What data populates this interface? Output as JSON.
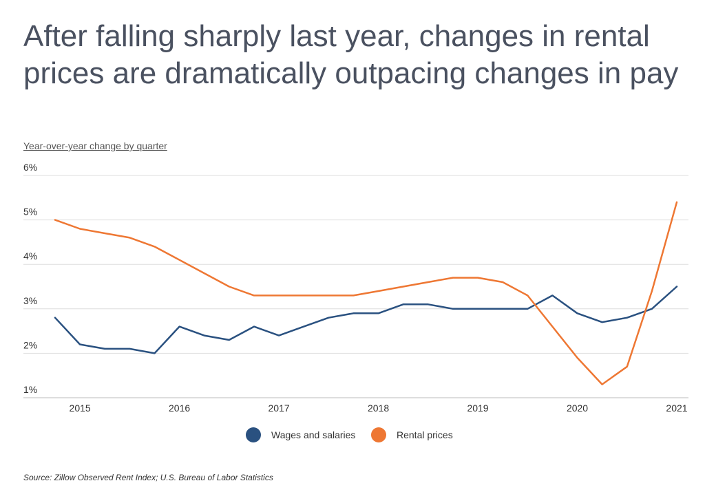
{
  "title": "After falling sharply last year, changes in rental prices are dramatically outpacing changes in pay",
  "subtitle": "Year-over-year change by quarter",
  "source": "Source:  Zillow Observed Rent Index; U.S. Bureau of Labor Statistics",
  "colors": {
    "wages": "#2a5180",
    "rent": "#ee7733",
    "grid": "#dddddd",
    "axis": "#bbbbbb"
  },
  "chart_data": {
    "type": "line",
    "title": "After falling sharply last year, changes in rental prices are dramatically outpacing changes in pay",
    "ylabel": "Year-over-year change by quarter",
    "xlabel": "",
    "ylim": [
      1,
      6
    ],
    "xlim": [
      2014.75,
      2021
    ],
    "yticks": [
      1,
      2,
      3,
      4,
      5,
      6
    ],
    "ytick_labels": [
      "1%",
      "2%",
      "3%",
      "4%",
      "5%",
      "6%"
    ],
    "xticks": [
      2015,
      2016,
      2017,
      2018,
      2019,
      2020,
      2021
    ],
    "xtick_labels": [
      "2015",
      "2016",
      "2017",
      "2018",
      "2019",
      "2020",
      "2021"
    ],
    "grid": true,
    "legend": "bottom-center",
    "x": [
      2014.75,
      2015.0,
      2015.25,
      2015.5,
      2015.75,
      2016.0,
      2016.25,
      2016.5,
      2016.75,
      2017.0,
      2017.25,
      2017.5,
      2017.75,
      2018.0,
      2018.25,
      2018.5,
      2018.75,
      2019.0,
      2019.25,
      2019.5,
      2019.75,
      2020.0,
      2020.25,
      2020.5,
      2020.75,
      2021.0
    ],
    "series": [
      {
        "name": "Wages and salaries",
        "color": "#2a5180",
        "values": [
          2.8,
          2.2,
          2.1,
          2.1,
          2.0,
          2.6,
          2.4,
          2.3,
          2.6,
          2.4,
          2.6,
          2.8,
          2.9,
          2.9,
          3.1,
          3.1,
          3.0,
          3.0,
          3.0,
          3.0,
          3.3,
          2.9,
          2.7,
          2.8,
          3.0,
          3.5
        ]
      },
      {
        "name": "Rental prices",
        "color": "#ee7733",
        "values": [
          5.0,
          4.8,
          4.7,
          4.6,
          4.4,
          4.1,
          3.8,
          3.5,
          3.3,
          3.3,
          3.3,
          3.3,
          3.3,
          3.4,
          3.5,
          3.6,
          3.7,
          3.7,
          3.6,
          3.3,
          2.6,
          1.9,
          1.3,
          1.7,
          3.4,
          5.4
        ]
      }
    ]
  }
}
